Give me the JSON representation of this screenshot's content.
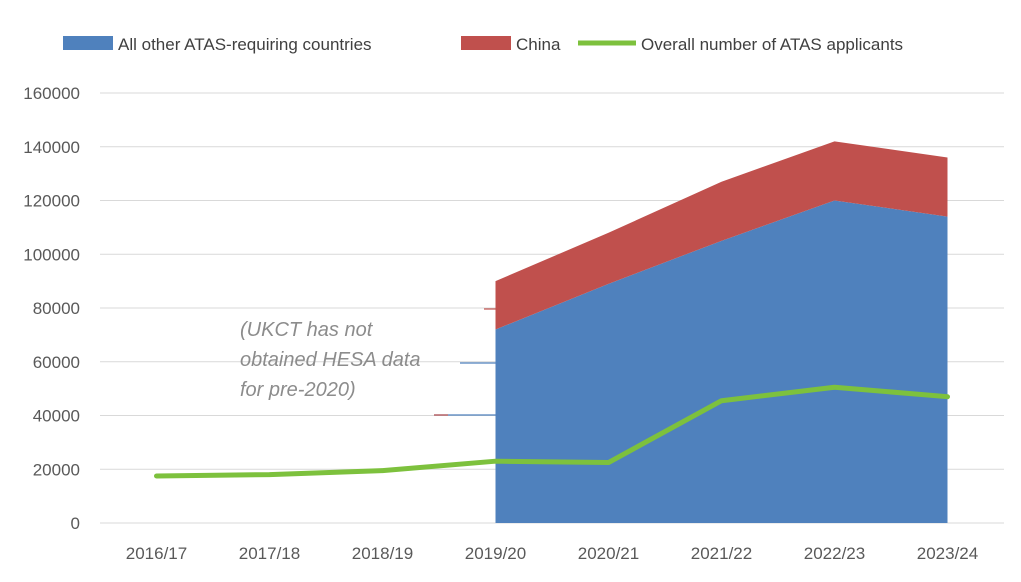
{
  "chart_data": {
    "type": "area",
    "categories": [
      "2016/17",
      "2017/18",
      "2018/19",
      "2019/20",
      "2020/21",
      "2021/22",
      "2022/23",
      "2023/24"
    ],
    "ylim": [
      0,
      160000
    ],
    "yticks": [
      "0",
      "20000",
      "40000",
      "60000",
      "80000",
      "100000",
      "120000",
      "140000",
      "160000"
    ],
    "ytick_values": [
      0,
      20000,
      40000,
      60000,
      80000,
      100000,
      120000,
      140000,
      160000
    ],
    "stacked_series": [
      {
        "name": "All other ATAS-requiring countries",
        "color": "#4f81bd",
        "start_index": 3,
        "values": [
          null,
          null,
          null,
          72000,
          89000,
          105000,
          120000,
          114000
        ]
      },
      {
        "name": "China",
        "color": "#c0504d",
        "start_index": 3,
        "values": [
          null,
          null,
          null,
          18000,
          19000,
          22000,
          22000,
          22000
        ]
      }
    ],
    "line_series": {
      "name": "Overall number of ATAS applicants",
      "color": "#7dc13d",
      "values": [
        17500,
        18000,
        19500,
        23000,
        22500,
        45500,
        50500,
        47000
      ]
    },
    "annotation": {
      "lines": [
        "(UKCT has not",
        "obtained HESA data",
        "for pre-2020)"
      ]
    },
    "legend": {
      "position": "top",
      "entries": [
        "All other ATAS-requiring countries",
        "China",
        "Overall number of ATAS applicants"
      ]
    }
  }
}
